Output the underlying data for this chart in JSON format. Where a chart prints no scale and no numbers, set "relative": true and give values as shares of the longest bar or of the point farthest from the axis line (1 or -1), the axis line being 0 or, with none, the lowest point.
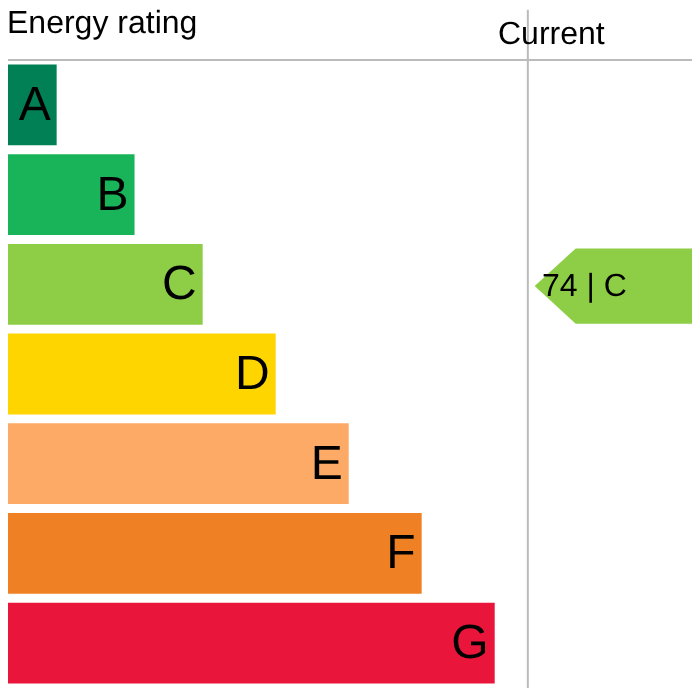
{
  "chart_data": {
    "type": "bar",
    "orientation": "horizontal",
    "relative": true,
    "title": "Energy rating",
    "categories": [
      "A",
      "B",
      "C",
      "D",
      "E",
      "F",
      "G"
    ],
    "values": [
      0.1,
      0.26,
      0.4,
      0.55,
      0.7,
      0.85,
      1
    ],
    "colors": [
      "#008054",
      "#19b459",
      "#8dce46",
      "#ffd500",
      "#fcaa65",
      "#ef8023",
      "#e9153b"
    ],
    "tick_labels": false,
    "legend": false,
    "annotations": [
      "Current",
      "74 | C"
    ]
  }
}
